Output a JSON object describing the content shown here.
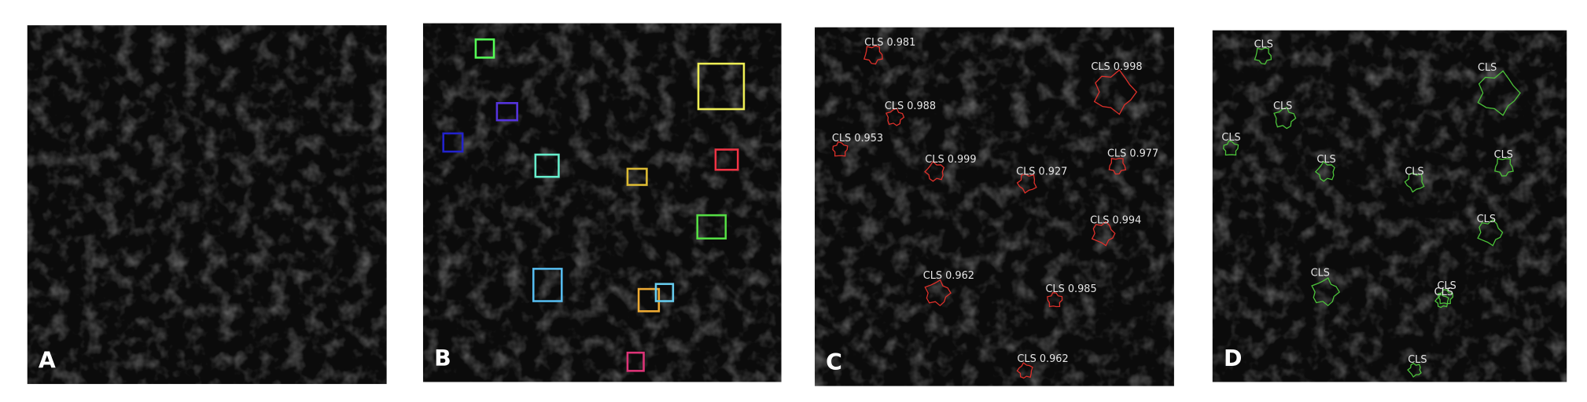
{
  "panels": [
    {
      "label": "A"
    },
    {
      "label": "B"
    },
    {
      "label": "C",
      "detections": [
        "CLS 0.981",
        "CLS 0.998",
        "CLS 0.988",
        "CLS 0.953",
        "CLS 0.999",
        "CLS 0.927",
        "CLS 0.977",
        "CLS 0.994",
        "CLS 0.962",
        "CLS 0.985",
        "CLS 0.962"
      ]
    },
    {
      "label": "D",
      "detections": [
        "CLS",
        "CLS",
        "CLS",
        "CLS",
        "CLS",
        "CLS",
        "CLS",
        "CLS",
        "CLS",
        "CLS",
        "CLS",
        "CLS"
      ]
    }
  ]
}
